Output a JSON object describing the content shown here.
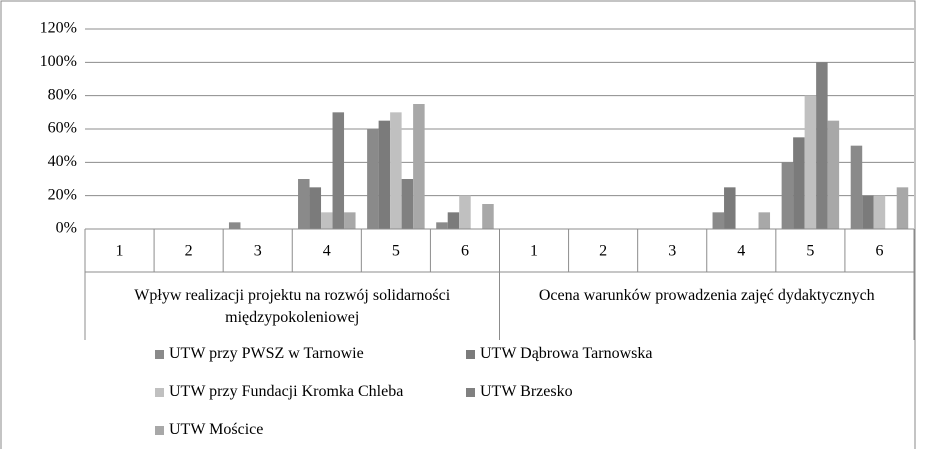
{
  "chart_data": {
    "type": "bar",
    "categories": [
      "1",
      "2",
      "3",
      "4",
      "5",
      "6",
      "1",
      "2",
      "3",
      "4",
      "5",
      "6"
    ],
    "category_groups": [
      "Wpływ realizacji projektu na rozwój solidarności międzypokoleniowej",
      "Ocena warunków prowadzenia zajęć dydaktycznych"
    ],
    "series": [
      {
        "name": "UTW przy PWSZ w Tarnowie",
        "color": "#8a8a8a",
        "values": [
          0,
          0,
          4,
          30,
          60,
          4,
          0,
          0,
          0,
          10,
          40,
          50
        ]
      },
      {
        "name": "UTW Dąbrowa Tarnowska",
        "color": "#7b7b7b",
        "values": [
          0,
          0,
          0,
          25,
          65,
          10,
          0,
          0,
          0,
          25,
          55,
          20
        ]
      },
      {
        "name": "UTW przy Fundacji Kromka Chleba",
        "color": "#c0c0c0",
        "values": [
          0,
          0,
          0,
          10,
          70,
          20,
          0,
          0,
          0,
          0,
          80,
          20
        ]
      },
      {
        "name": "UTW Brzesko",
        "color": "#808080",
        "values": [
          0,
          0,
          0,
          70,
          30,
          0,
          0,
          0,
          0,
          0,
          100,
          0
        ]
      },
      {
        "name": "UTW Mościce",
        "color": "#a8a8a8",
        "values": [
          0,
          0,
          0,
          10,
          75,
          15,
          0,
          0,
          0,
          10,
          65,
          25
        ]
      }
    ],
    "ylim": [
      0,
      120
    ],
    "yticks": [
      {
        "value": 0,
        "label": "0%"
      },
      {
        "value": 20,
        "label": "20%"
      },
      {
        "value": 40,
        "label": "40%"
      },
      {
        "value": 60,
        "label": "60%"
      },
      {
        "value": 80,
        "label": "80%"
      },
      {
        "value": 100,
        "label": "100%"
      },
      {
        "value": 120,
        "label": "120%"
      }
    ],
    "grid": true
  }
}
